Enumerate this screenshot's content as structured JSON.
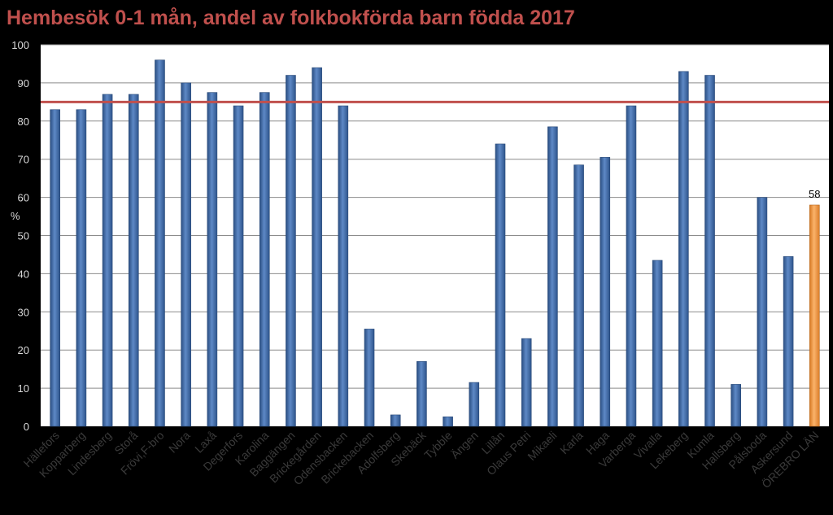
{
  "chart_data": {
    "type": "bar",
    "title": "Hembesök 0-1 mån, andel av folkbokförda barn födda 2017",
    "ylabel": "%",
    "ylim": [
      0,
      100
    ],
    "yticks": [
      "0",
      "10",
      "20",
      "30",
      "40",
      "50",
      "60",
      "70",
      "80",
      "90",
      "100"
    ],
    "grid": true,
    "reference_line": 85,
    "categories": [
      "Hällefors",
      "Kopparberg",
      "Lindesberg",
      "Storå",
      "Frövi,F-bro",
      "Nora",
      "Laxå",
      "Degerfors",
      "Karolina",
      "Baggängen",
      "Brickegården",
      "Odensbacken",
      "Brickebacken",
      "Adolfsberg",
      "Skebäck",
      "Tybble",
      "Ängen",
      "Lillån",
      "Olaus Petri",
      "Mikaeli",
      "Karla",
      "Haga",
      "Varberga",
      "Vivalla",
      "Lekeberg",
      "Kumla",
      "Hallsberg",
      "Pålsboda",
      "Askersund",
      "ÖREBRO LÄN"
    ],
    "values": [
      83,
      83,
      87,
      87,
      96,
      90,
      87.5,
      84,
      87.5,
      92,
      94,
      84,
      25.5,
      3,
      17,
      2.5,
      11.5,
      74,
      23,
      78.5,
      68.5,
      70.5,
      84,
      43.5,
      93,
      92,
      11,
      60,
      44.5,
      58
    ],
    "highlight_category": "ÖREBRO LÄN",
    "data_labels": [
      {
        "category": "ÖREBRO LÄN",
        "text": "58"
      }
    ],
    "colors": {
      "bar": "#3E69A4",
      "bar_highlight": "#F39A40",
      "reference_line": "#C0504D",
      "title": "#C0504D",
      "background": "#000000",
      "plot_background": "#FFFFFF",
      "grid": "#8C8C8C"
    }
  }
}
